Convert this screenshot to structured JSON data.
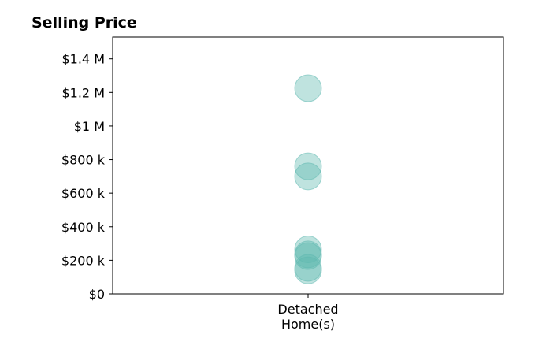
{
  "chart_data": {
    "type": "scatter",
    "title": "Selling Price",
    "xlabel": "",
    "ylabel": "",
    "categories": [
      "Detached Home(s)"
    ],
    "category_lines": [
      "Detached",
      "Home(s)"
    ],
    "ylim": [
      0,
      1530000
    ],
    "yticks": [
      0,
      200000,
      400000,
      600000,
      800000,
      1000000,
      1200000,
      1400000
    ],
    "ytick_labels": [
      "$0",
      "$200 k",
      "$400 k",
      "$600 k",
      "$800 k",
      "$1 M",
      "$1.2 M",
      "$1.4 M"
    ],
    "grid": false,
    "legend": "none",
    "series": [
      {
        "values": [
          1225000,
          760000,
          700000,
          265000,
          235000,
          225000,
          155000,
          140000
        ]
      }
    ],
    "marker_color": "#5fb8b0",
    "marker_opacity": 0.4
  }
}
